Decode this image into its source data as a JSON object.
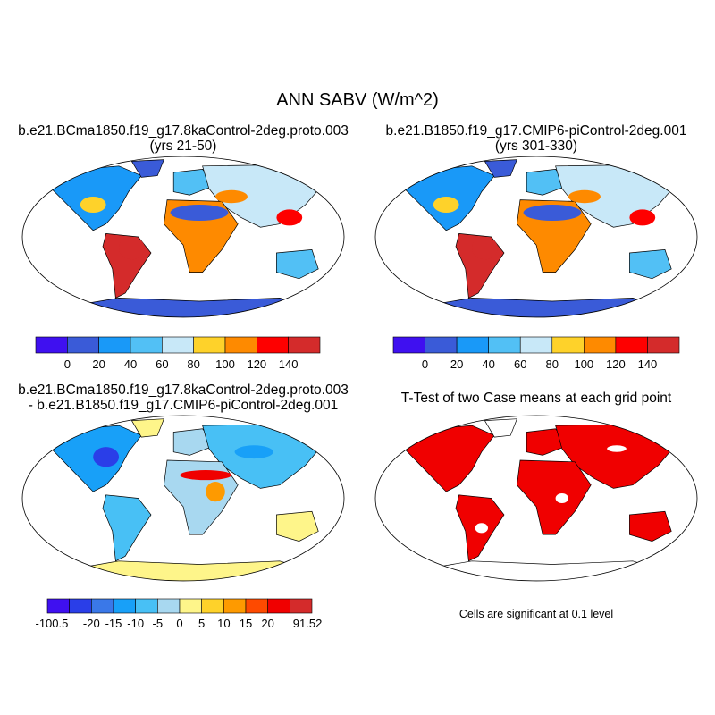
{
  "figure": {
    "title": "ANN SABV (W/m^2)",
    "panels": [
      {
        "title_line1": "b.e21.BCma1850.f19_g17.8kaControl-2deg.proto.003",
        "title_line2": "(yrs 21-50)"
      },
      {
        "title_line1": "b.e21.B1850.f19_g17.CMIP6-piControl-2deg.001",
        "title_line2": "(yrs 301-330)"
      },
      {
        "title_line1": "b.e21.BCma1850.f19_g17.8kaControl-2deg.proto.003",
        "title_line2": "- b.e21.B1850.f19_g17.CMIP6-piControl-2deg.001"
      },
      {
        "title_line1": "T-Test of two Case means at each grid point",
        "footnote": "Cells are significant at 0.1 level"
      }
    ],
    "colorbar_abs": {
      "labels": [
        "0",
        "20",
        "40",
        "60",
        "80",
        "100",
        "120",
        "140"
      ],
      "colors": [
        "#3f10f0",
        "#3a5bd8",
        "#1999f8",
        "#52c0f5",
        "#c8e8f8",
        "#fed22a",
        "#fe8a00",
        "#fe0000",
        "#d42b2b"
      ]
    },
    "colorbar_diff": {
      "labels": [
        "-100.5",
        "-20",
        "-15",
        "-10",
        "-5",
        "0",
        "5",
        "10",
        "15",
        "20",
        "91.52"
      ],
      "colors": [
        "#3f10f0",
        "#2a3ee8",
        "#3a78e8",
        "#18a0f8",
        "#48c0f5",
        "#a8d8f0",
        "#fef58a",
        "#fed22a",
        "#fe9a00",
        "#fe4a00",
        "#f00000",
        "#d42b2b"
      ]
    },
    "significance_color": "#f00000"
  }
}
